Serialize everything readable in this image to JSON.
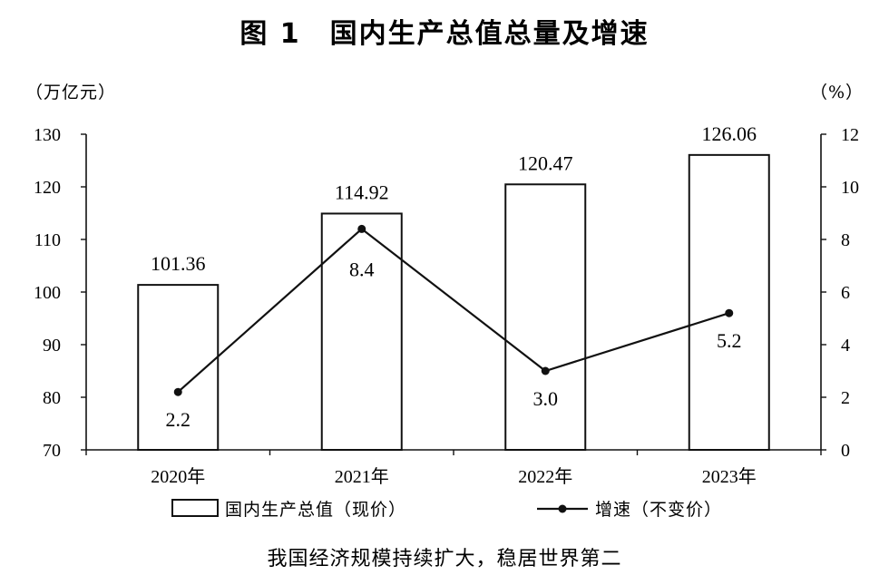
{
  "title": "图 1　国内生产总值总量及增速",
  "footnote": "我国经济规模持续扩大，稳居世界第二",
  "chart_data": {
    "type": "bar",
    "categories": [
      "2020年",
      "2021年",
      "2022年",
      "2023年"
    ],
    "series": [
      {
        "name": "国内生产总值（现价）",
        "type": "bar",
        "axis": "left",
        "values": [
          101.36,
          114.92,
          120.47,
          126.06
        ],
        "labels": [
          "101.36",
          "114.92",
          "120.47",
          "126.06"
        ]
      },
      {
        "name": "增速（不变价）",
        "type": "line",
        "axis": "right",
        "values": [
          2.2,
          8.4,
          3.0,
          5.2
        ],
        "labels": [
          "2.2",
          "8.4",
          "3.0",
          "5.2"
        ]
      }
    ],
    "y_left": {
      "unit": "（万亿元）",
      "range": [
        70,
        130
      ],
      "ticks": [
        70,
        80,
        90,
        100,
        110,
        120,
        130
      ]
    },
    "y_right": {
      "unit": "（%）",
      "range": [
        0,
        12
      ],
      "ticks": [
        0,
        2,
        4,
        6,
        8,
        10,
        12
      ]
    },
    "grid": false,
    "legend_position": "bottom"
  }
}
